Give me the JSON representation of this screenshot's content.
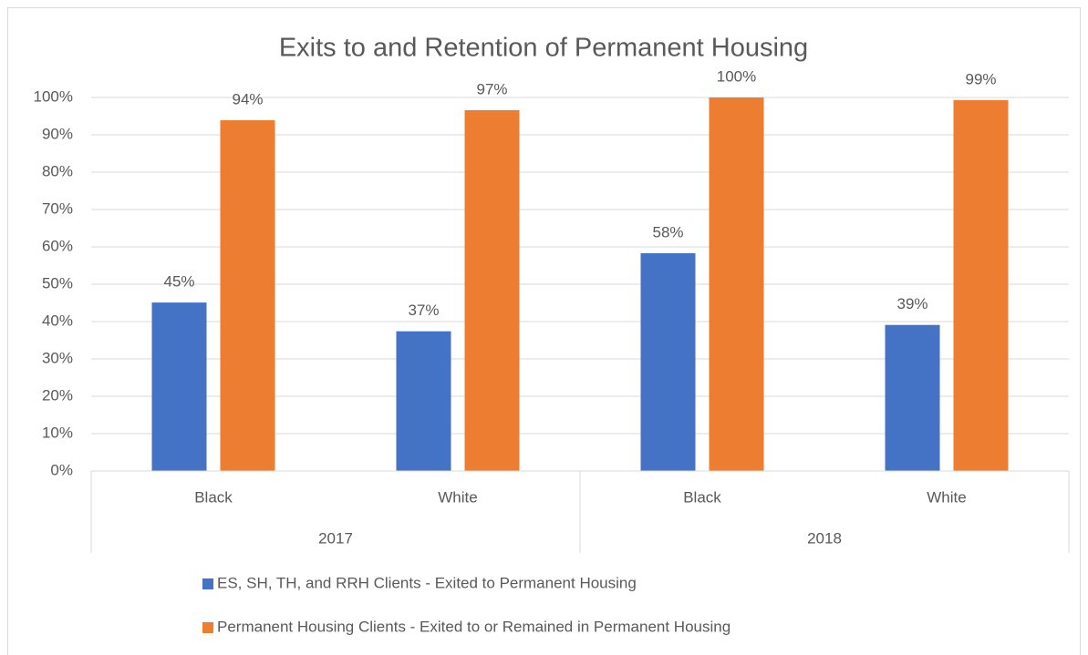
{
  "chart_data": {
    "type": "bar",
    "title": "Exits to and Retention of Permanent Housing",
    "categories": [
      "Black",
      "White",
      "Black",
      "White"
    ],
    "group_labels": [
      "2017",
      "2018"
    ],
    "series": [
      {
        "name": "ES, SH, TH, and RRH Clients - Exited to Permanent Housing",
        "color": "#4472c4",
        "values": [
          45.1,
          37.4,
          58.3,
          39.1
        ],
        "value_labels": [
          "45%",
          "37%",
          "58%",
          "39%"
        ]
      },
      {
        "name": "Permanent Housing Clients  - Exited to or Remained in Permanent Housing",
        "color": "#ed7d31",
        "values": [
          93.9,
          96.6,
          100,
          99.3
        ],
        "value_labels": [
          "94%",
          "97%",
          "100%",
          "99%"
        ]
      }
    ],
    "ylim": [
      0,
      100
    ],
    "yticks": [
      {
        "value": 0,
        "label": "0%"
      },
      {
        "value": 10,
        "label": "10%"
      },
      {
        "value": 20,
        "label": "20%"
      },
      {
        "value": 30,
        "label": "30%"
      },
      {
        "value": 40,
        "label": "40%"
      },
      {
        "value": 50,
        "label": "50%"
      },
      {
        "value": 60,
        "label": "60%"
      },
      {
        "value": 70,
        "label": "70%"
      },
      {
        "value": 80,
        "label": "80%"
      },
      {
        "value": 90,
        "label": "90%"
      },
      {
        "value": 100,
        "label": "100%"
      }
    ],
    "grid": true,
    "legend": "bottom"
  }
}
